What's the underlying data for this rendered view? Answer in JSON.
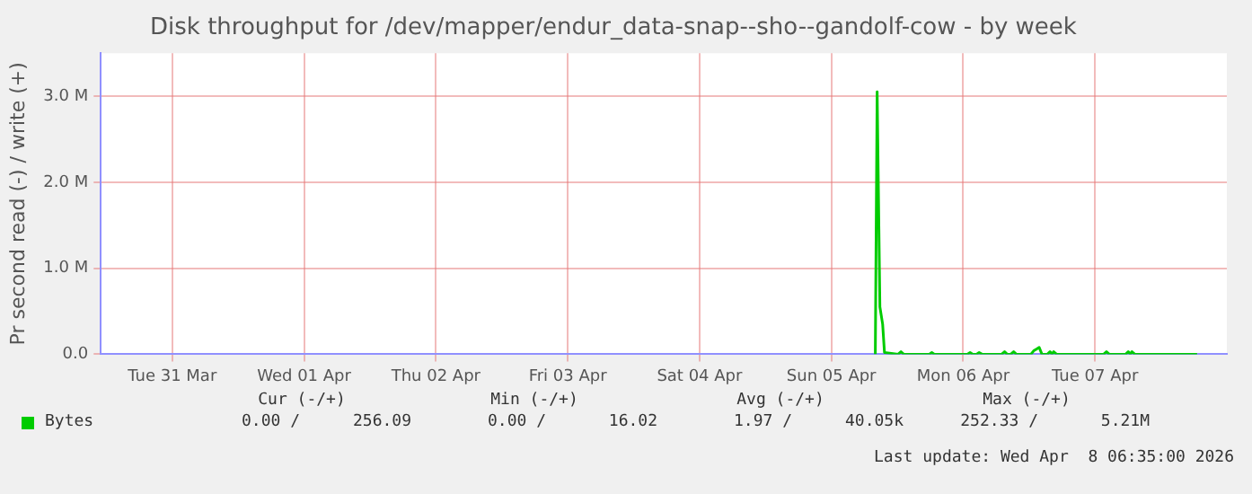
{
  "chart_data": {
    "type": "line",
    "title": "Disk throughput for /dev/mapper/endur_data-snap--sho--gandolf-cow - by week",
    "ylabel": "Pr second read (-) / write (+)",
    "xlim": [
      "2026-03-30T23:00",
      "2026-04-08T12:00"
    ],
    "xticks": [
      {
        "value": "2026-03-31T12:00",
        "label": "Tue 31 Mar"
      },
      {
        "value": "2026-04-01T12:00",
        "label": "Wed 01 Apr"
      },
      {
        "value": "2026-04-02T12:00",
        "label": "Thu 02 Apr"
      },
      {
        "value": "2026-04-03T12:00",
        "label": "Fri 03 Apr"
      },
      {
        "value": "2026-04-04T12:00",
        "label": "Sat 04 Apr"
      },
      {
        "value": "2026-04-05T12:00",
        "label": "Sun 05 Apr"
      },
      {
        "value": "2026-04-06T12:00",
        "label": "Mon 06 Apr"
      },
      {
        "value": "2026-04-07T12:00",
        "label": "Tue 07 Apr"
      }
    ],
    "ylim": [
      0,
      3500000
    ],
    "yticks": [
      {
        "value": 0,
        "label": "0.0"
      },
      {
        "value": 1000000,
        "label": "1.0 M"
      },
      {
        "value": 2000000,
        "label": "2.0 M"
      },
      {
        "value": 3000000,
        "label": "3.0 M"
      }
    ],
    "grid": true,
    "legend": "bottom left",
    "marker": "none",
    "line_style": "solid",
    "series": [
      {
        "name": "Bytes",
        "color": "#00cc00",
        "x": [
          "2026-04-05T20:00",
          "2026-04-05T20:20",
          "2026-04-05T20:50",
          "2026-04-05T21:20",
          "2026-04-05T21:40",
          "2026-04-06T00:10",
          "2026-04-06T00:40",
          "2026-04-06T01:10",
          "2026-04-06T05:50",
          "2026-04-06T06:17",
          "2026-04-06T06:45",
          "2026-04-06T12:45",
          "2026-04-06T13:15",
          "2026-04-06T13:45",
          "2026-04-06T14:25",
          "2026-04-06T14:54",
          "2026-04-06T15:25",
          "2026-04-06T19:00",
          "2026-04-06T19:32",
          "2026-04-06T20:00",
          "2026-04-06T20:40",
          "2026-04-06T21:11",
          "2026-04-06T21:40",
          "2026-04-07T00:20",
          "2026-04-07T00:50",
          "2026-04-07T01:20",
          "2026-04-07T01:50",
          "2026-04-07T02:20",
          "2026-04-07T03:20",
          "2026-04-07T03:48",
          "2026-04-07T04:10",
          "2026-04-07T04:28",
          "2026-04-07T05:00",
          "2026-04-07T13:35",
          "2026-04-07T14:05",
          "2026-04-07T14:35",
          "2026-04-07T17:35",
          "2026-04-07T18:03",
          "2026-04-07T18:25",
          "2026-04-07T18:43",
          "2026-04-07T19:15",
          "2026-04-08T06:35"
        ],
        "values": [
          0,
          3050000,
          550000,
          350000,
          20000,
          0,
          30000,
          0,
          0,
          20000,
          0,
          0,
          20000,
          0,
          0,
          20000,
          0,
          0,
          30000,
          0,
          0,
          30000,
          0,
          0,
          40000,
          60000,
          80000,
          0,
          0,
          30000,
          0,
          30000,
          0,
          0,
          30000,
          0,
          0,
          30000,
          0,
          30000,
          0,
          0
        ]
      }
    ],
    "annotations": [
      "Cur (-/+)",
      "Min (-/+)",
      "Avg (-/+)",
      "Max (-/+)",
      "0.00 /",
      "256.09",
      "0.00 /",
      "16.02",
      "1.97 /",
      "40.05k",
      "252.33 /",
      "5.21M",
      "Last update: Wed Apr  8 06:35:00 2026"
    ]
  }
}
